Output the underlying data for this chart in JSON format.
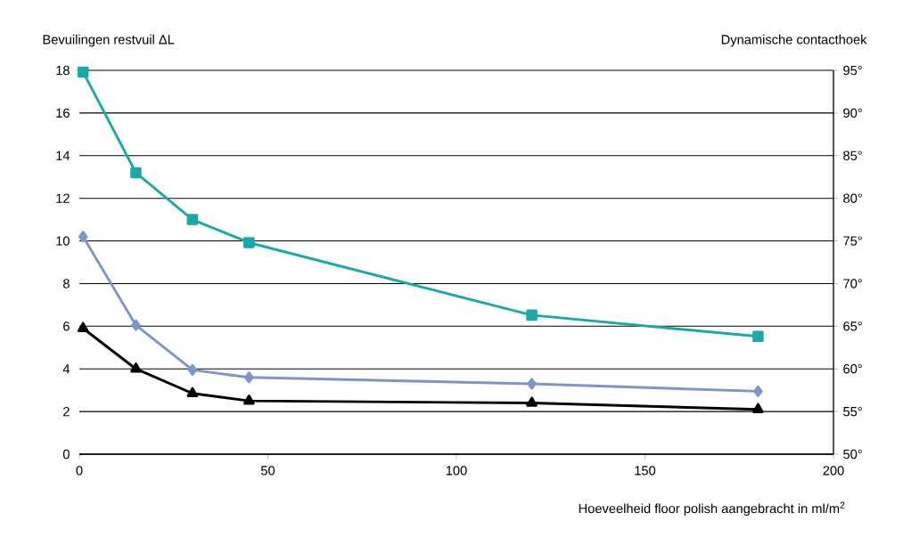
{
  "chart_data": {
    "type": "line",
    "ylabel": "Bevuilingen restvuil ΔL",
    "y2label": "Dynamische contacthoek",
    "xlabel": "Hoeveelheid floor polish aangebracht in ml/m$^{2}$",
    "xlim": [
      0,
      200
    ],
    "xticks": [
      0,
      50,
      100,
      150,
      200
    ],
    "ylim": [
      0,
      18
    ],
    "yticks": [
      0,
      2,
      4,
      6,
      8,
      10,
      12,
      14,
      16,
      18
    ],
    "y2lim": [
      50,
      95
    ],
    "y2ticks": [
      {
        "value": 50,
        "label": "50°"
      },
      {
        "value": 55,
        "label": "55°"
      },
      {
        "value": 60,
        "label": "60°"
      },
      {
        "value": 65,
        "label": "65°"
      },
      {
        "value": 70,
        "label": "70°"
      },
      {
        "value": 75,
        "label": "75°"
      },
      {
        "value": 80,
        "label": "80°"
      },
      {
        "value": 85,
        "label": "85°"
      },
      {
        "value": 90,
        "label": "90°"
      },
      {
        "value": 95,
        "label": "95°"
      }
    ],
    "grid": "y",
    "line_style": "solid",
    "series": [
      {
        "color": "#1aa8a8",
        "marker": "square",
        "axis": "y2",
        "x": [
          1,
          15,
          30,
          45,
          120,
          180
        ],
        "values": [
          94.8,
          83,
          77.5,
          74.8,
          66.3,
          63.8
        ]
      },
      {
        "color": "#8094cc",
        "marker": "diamond",
        "x": [
          1,
          15,
          30,
          45,
          120,
          180
        ],
        "values": [
          10.2,
          6.05,
          3.95,
          3.6,
          3.3,
          2.95
        ]
      },
      {
        "color": "#000000",
        "marker": "triangle",
        "x": [
          1,
          15,
          30,
          45,
          120,
          180
        ],
        "values": [
          5.9,
          4.0,
          2.85,
          2.5,
          2.4,
          2.1
        ]
      }
    ]
  }
}
